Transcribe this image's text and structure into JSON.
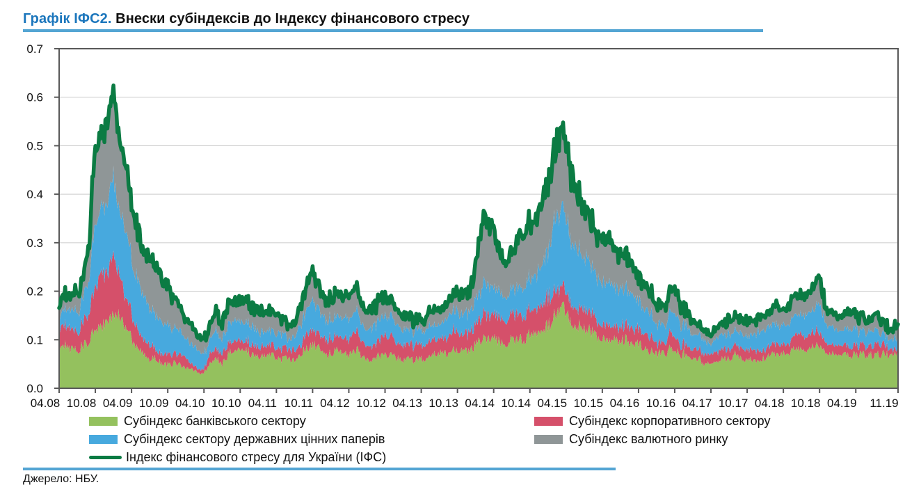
{
  "header": {
    "title_prefix": "Графік ІФС2.",
    "title_rest": " Внески субіндексів до Індексу фінансового стресу"
  },
  "footer": {
    "source_label": "Джерело: НБУ."
  },
  "colors": {
    "title_accent": "#1b76bc",
    "rule_blue": "#54a5d3",
    "grid": "#c9c9c9",
    "frame": "#595959",
    "axis_text": "#111111"
  },
  "chart_data": {
    "type": "area",
    "stacked": true,
    "title": "Графік ІФС2. Внески субіндексів до Індексу фінансового стресу",
    "xlabel": "",
    "ylabel": "",
    "ylim": [
      0,
      0.7
    ],
    "grid": true,
    "legend_position": "bottom",
    "y_tick_labels": [
      "0.0",
      "0.1",
      "0.2",
      "0.3",
      "0.4",
      "0.5",
      "0.6",
      "0.7"
    ],
    "x_tick_labels": [
      "04.08",
      "10.08",
      "04.09",
      "10.09",
      "04.10",
      "10.10",
      "04.11",
      "10.11",
      "04.12",
      "10.12",
      "04.13",
      "10.13",
      "04.14",
      "10.14",
      "04.15",
      "10.15",
      "04.16",
      "10.16",
      "04.17",
      "10.17",
      "04.18",
      "10.18",
      "04.19",
      "11.19"
    ],
    "x_tick_months": [
      0,
      6,
      12,
      18,
      24,
      30,
      36,
      42,
      48,
      54,
      60,
      66,
      72,
      78,
      84,
      90,
      96,
      102,
      108,
      114,
      120,
      126,
      132,
      139
    ],
    "x_range_note": "monthly values 04.2008 - 11.2019, stacked contributions",
    "series": [
      {
        "name": "Субіндекс банківського сектору",
        "color": "#94c15e",
        "values": [
          0.08,
          0.09,
          0.08,
          0.08,
          0.09,
          0.1,
          0.12,
          0.13,
          0.14,
          0.15,
          0.15,
          0.12,
          0.1,
          0.08,
          0.07,
          0.06,
          0.06,
          0.05,
          0.05,
          0.05,
          0.05,
          0.04,
          0.04,
          0.03,
          0.03,
          0.05,
          0.06,
          0.05,
          0.07,
          0.08,
          0.08,
          0.08,
          0.07,
          0.06,
          0.07,
          0.07,
          0.06,
          0.06,
          0.06,
          0.06,
          0.07,
          0.08,
          0.09,
          0.08,
          0.07,
          0.07,
          0.08,
          0.07,
          0.07,
          0.08,
          0.07,
          0.06,
          0.06,
          0.07,
          0.07,
          0.07,
          0.06,
          0.06,
          0.06,
          0.06,
          0.06,
          0.06,
          0.07,
          0.07,
          0.07,
          0.08,
          0.08,
          0.08,
          0.08,
          0.09,
          0.1,
          0.1,
          0.1,
          0.1,
          0.09,
          0.1,
          0.1,
          0.1,
          0.11,
          0.11,
          0.12,
          0.13,
          0.15,
          0.16,
          0.16,
          0.14,
          0.13,
          0.13,
          0.12,
          0.11,
          0.1,
          0.1,
          0.1,
          0.1,
          0.1,
          0.09,
          0.09,
          0.08,
          0.08,
          0.07,
          0.07,
          0.08,
          0.08,
          0.07,
          0.07,
          0.06,
          0.06,
          0.05,
          0.05,
          0.05,
          0.06,
          0.06,
          0.07,
          0.06,
          0.06,
          0.06,
          0.06,
          0.06,
          0.07,
          0.07,
          0.07,
          0.07,
          0.08,
          0.08,
          0.08,
          0.09,
          0.09,
          0.07,
          0.07,
          0.07,
          0.07,
          0.07,
          0.07,
          0.07,
          0.07,
          0.07,
          0.07,
          0.07,
          0.07,
          0.07
        ]
      },
      {
        "name": "Субіндекс корпоративного сектору",
        "color": "#d5506a",
        "values": [
          0.04,
          0.04,
          0.04,
          0.04,
          0.05,
          0.06,
          0.09,
          0.11,
          0.1,
          0.12,
          0.09,
          0.06,
          0.05,
          0.04,
          0.03,
          0.03,
          0.02,
          0.02,
          0.02,
          0.02,
          0.02,
          0.02,
          0.01,
          0.01,
          0.01,
          0.02,
          0.02,
          0.02,
          0.02,
          0.02,
          0.02,
          0.02,
          0.02,
          0.02,
          0.02,
          0.02,
          0.02,
          0.02,
          0.02,
          0.02,
          0.02,
          0.03,
          0.03,
          0.03,
          0.03,
          0.03,
          0.03,
          0.03,
          0.03,
          0.04,
          0.03,
          0.03,
          0.03,
          0.03,
          0.04,
          0.04,
          0.03,
          0.03,
          0.03,
          0.03,
          0.03,
          0.03,
          0.03,
          0.03,
          0.03,
          0.04,
          0.04,
          0.03,
          0.04,
          0.04,
          0.05,
          0.05,
          0.05,
          0.05,
          0.05,
          0.05,
          0.05,
          0.05,
          0.05,
          0.05,
          0.05,
          0.06,
          0.05,
          0.04,
          0.04,
          0.04,
          0.04,
          0.04,
          0.04,
          0.03,
          0.03,
          0.03,
          0.03,
          0.03,
          0.03,
          0.03,
          0.03,
          0.03,
          0.03,
          0.02,
          0.02,
          0.03,
          0.03,
          0.02,
          0.02,
          0.02,
          0.02,
          0.02,
          0.02,
          0.02,
          0.02,
          0.02,
          0.02,
          0.02,
          0.02,
          0.02,
          0.02,
          0.02,
          0.02,
          0.02,
          0.02,
          0.02,
          0.03,
          0.03,
          0.03,
          0.03,
          0.03,
          0.02,
          0.02,
          0.02,
          0.02,
          0.02,
          0.02,
          0.02,
          0.02,
          0.02,
          0.02,
          0.02,
          0.01,
          0.01
        ]
      },
      {
        "name": "Субіндекс сектору державних цінних паперів",
        "color": "#47a9de",
        "values": [
          0.03,
          0.03,
          0.04,
          0.04,
          0.05,
          0.07,
          0.13,
          0.14,
          0.15,
          0.16,
          0.15,
          0.13,
          0.11,
          0.1,
          0.09,
          0.08,
          0.07,
          0.07,
          0.06,
          0.05,
          0.05,
          0.04,
          0.04,
          0.04,
          0.03,
          0.03,
          0.04,
          0.03,
          0.04,
          0.04,
          0.04,
          0.04,
          0.04,
          0.03,
          0.03,
          0.03,
          0.03,
          0.03,
          0.02,
          0.03,
          0.04,
          0.05,
          0.06,
          0.05,
          0.04,
          0.04,
          0.04,
          0.04,
          0.04,
          0.04,
          0.04,
          0.03,
          0.04,
          0.04,
          0.04,
          0.04,
          0.04,
          0.03,
          0.03,
          0.03,
          0.03,
          0.03,
          0.03,
          0.03,
          0.04,
          0.04,
          0.04,
          0.04,
          0.04,
          0.05,
          0.06,
          0.06,
          0.06,
          0.05,
          0.05,
          0.05,
          0.05,
          0.06,
          0.06,
          0.07,
          0.08,
          0.1,
          0.14,
          0.17,
          0.16,
          0.13,
          0.12,
          0.11,
          0.1,
          0.09,
          0.09,
          0.09,
          0.08,
          0.08,
          0.07,
          0.07,
          0.06,
          0.05,
          0.05,
          0.04,
          0.04,
          0.04,
          0.05,
          0.04,
          0.04,
          0.03,
          0.03,
          0.03,
          0.02,
          0.03,
          0.03,
          0.03,
          0.03,
          0.03,
          0.03,
          0.03,
          0.04,
          0.04,
          0.04,
          0.04,
          0.04,
          0.04,
          0.04,
          0.04,
          0.05,
          0.05,
          0.06,
          0.04,
          0.04,
          0.03,
          0.03,
          0.04,
          0.03,
          0.03,
          0.03,
          0.03,
          0.02,
          0.02,
          0.02,
          0.02
        ]
      },
      {
        "name": "Субіндекс валютного ринку",
        "color": "#8f9697",
        "values": [
          0.03,
          0.03,
          0.03,
          0.04,
          0.04,
          0.08,
          0.16,
          0.16,
          0.17,
          0.18,
          0.16,
          0.14,
          0.11,
          0.1,
          0.1,
          0.1,
          0.1,
          0.09,
          0.08,
          0.06,
          0.05,
          0.04,
          0.04,
          0.03,
          0.03,
          0.03,
          0.04,
          0.03,
          0.04,
          0.04,
          0.04,
          0.05,
          0.04,
          0.04,
          0.04,
          0.04,
          0.04,
          0.03,
          0.03,
          0.03,
          0.04,
          0.05,
          0.06,
          0.05,
          0.04,
          0.04,
          0.05,
          0.04,
          0.05,
          0.05,
          0.04,
          0.04,
          0.04,
          0.04,
          0.04,
          0.03,
          0.03,
          0.03,
          0.03,
          0.02,
          0.02,
          0.03,
          0.03,
          0.03,
          0.03,
          0.03,
          0.04,
          0.04,
          0.04,
          0.07,
          0.12,
          0.13,
          0.12,
          0.08,
          0.07,
          0.08,
          0.1,
          0.11,
          0.11,
          0.12,
          0.13,
          0.14,
          0.14,
          0.16,
          0.14,
          0.14,
          0.12,
          0.1,
          0.09,
          0.09,
          0.09,
          0.09,
          0.08,
          0.07,
          0.07,
          0.06,
          0.05,
          0.05,
          0.04,
          0.04,
          0.04,
          0.04,
          0.05,
          0.04,
          0.03,
          0.03,
          0.02,
          0.02,
          0.02,
          0.02,
          0.02,
          0.03,
          0.03,
          0.03,
          0.03,
          0.03,
          0.03,
          0.03,
          0.03,
          0.04,
          0.03,
          0.04,
          0.04,
          0.04,
          0.04,
          0.05,
          0.06,
          0.03,
          0.03,
          0.03,
          0.03,
          0.04,
          0.03,
          0.03,
          0.02,
          0.03,
          0.03,
          0.02,
          0.02,
          0.03
        ]
      }
    ],
    "line": {
      "name": "Індекс фінансового стресу для України (ІФС)",
      "color": "#0b7b43",
      "definition": "сума субіндексів (верхня межа стека)"
    },
    "legend_entries": [
      {
        "label": "Субіндекс банківського сектору",
        "swatch": "box",
        "color": "#94c15e"
      },
      {
        "label": "Субіндекс корпоративного сектору",
        "swatch": "box",
        "color": "#d5506a"
      },
      {
        "label": "Субіндекс сектору державних цінних паперів",
        "swatch": "box",
        "color": "#47a9de"
      },
      {
        "label": "Субіндекс валютного ринку",
        "swatch": "box",
        "color": "#8f9697"
      },
      {
        "label": "Індекс фінансового стресу для України (ІФС)",
        "swatch": "line",
        "color": "#0b7b43"
      }
    ]
  }
}
